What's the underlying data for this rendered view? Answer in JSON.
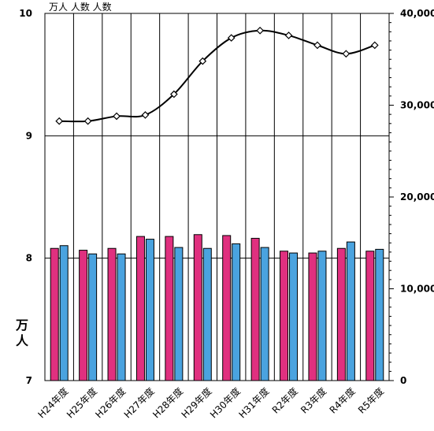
{
  "chart_data": {
    "type": "bar",
    "title": "",
    "top_note": "万人  人数  人数",
    "categories": [
      "H24年度",
      "H25年度",
      "H26年度",
      "H27年度",
      "H28年度",
      "H29年度",
      "H30年度",
      "H31年度",
      "R2年度",
      "R3年度",
      "R4年度",
      "R5年度"
    ],
    "left_axis": {
      "unit_label": "万人",
      "ylim": [
        7,
        10
      ],
      "ticks": [
        "7",
        "8",
        "9",
        "10"
      ]
    },
    "right_axis": {
      "ylim": [
        0,
        40000
      ],
      "ticks": [
        "0",
        "10,000",
        "20,000",
        "30,000",
        "40,000"
      ]
    },
    "series": [
      {
        "kind": "bar",
        "axis": "right",
        "color": "#e0307f",
        "values": [
          14400,
          14200,
          14400,
          15700,
          15700,
          15900,
          15800,
          15500,
          14100,
          13900,
          14400,
          14100
        ]
      },
      {
        "kind": "bar",
        "axis": "right",
        "color": "#4aa3df",
        "values": [
          14700,
          13800,
          13800,
          15400,
          14500,
          14400,
          14900,
          14500,
          13900,
          14100,
          15100,
          14300
        ]
      },
      {
        "kind": "line",
        "axis": "left",
        "color": "#000000",
        "marker": "diamond",
        "values": [
          9.12,
          9.12,
          9.16,
          9.17,
          9.34,
          9.61,
          9.8,
          9.86,
          9.82,
          9.74,
          9.67,
          9.74
        ]
      }
    ],
    "grid": true,
    "legend": "none"
  }
}
